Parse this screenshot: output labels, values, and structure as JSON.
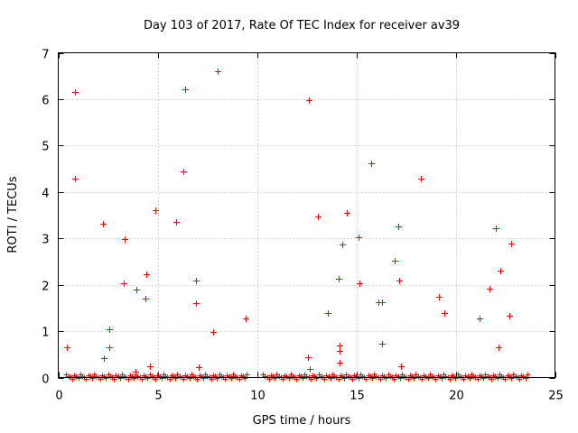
{
  "chart_data": {
    "type": "scatter",
    "title": "Day 103 of 2017, Rate Of TEC Index for receiver av39",
    "xlabel": "GPS time / hours",
    "ylabel": "ROTI / TECUs",
    "xlim": [
      0,
      25
    ],
    "ylim": [
      0,
      7
    ],
    "xticks": [
      0,
      5,
      10,
      15,
      20,
      25
    ],
    "yticks": [
      0,
      1,
      2,
      3,
      4,
      5,
      6,
      7
    ],
    "grid": true,
    "marker": "+",
    "color": "#ff0000",
    "baseline_segments": [
      {
        "x_start": 0.4,
        "x_end": 9.5,
        "y": 0.02
      },
      {
        "x_start": 10.3,
        "x_end": 23.7,
        "y": 0.02
      }
    ],
    "series": [
      {
        "name": "av39",
        "points": [
          [
            0.45,
            0.65
          ],
          [
            0.85,
            6.15
          ],
          [
            0.85,
            4.28
          ],
          [
            2.25,
            3.32
          ],
          [
            2.3,
            0.42
          ],
          [
            2.55,
            1.05
          ],
          [
            2.55,
            0.65
          ],
          [
            3.3,
            2.03
          ],
          [
            3.35,
            2.98
          ],
          [
            3.9,
            0.12
          ],
          [
            3.95,
            1.9
          ],
          [
            4.4,
            1.7
          ],
          [
            4.45,
            2.22
          ],
          [
            4.6,
            0.25
          ],
          [
            4.9,
            3.6
          ],
          [
            5.95,
            3.35
          ],
          [
            6.3,
            4.45
          ],
          [
            6.4,
            6.22
          ],
          [
            6.95,
            1.6
          ],
          [
            6.95,
            2.1
          ],
          [
            7.05,
            0.22
          ],
          [
            7.8,
            0.98
          ],
          [
            8.0,
            6.6
          ],
          [
            9.45,
            1.27
          ],
          [
            12.55,
            0.44
          ],
          [
            12.6,
            5.97
          ],
          [
            12.65,
            0.18
          ],
          [
            13.05,
            3.48
          ],
          [
            13.55,
            1.4
          ],
          [
            14.1,
            2.12
          ],
          [
            14.15,
            0.7
          ],
          [
            14.15,
            0.57
          ],
          [
            14.15,
            0.33
          ],
          [
            14.3,
            2.87
          ],
          [
            14.5,
            3.55
          ],
          [
            15.1,
            3.02
          ],
          [
            15.15,
            2.04
          ],
          [
            15.75,
            4.62
          ],
          [
            16.1,
            1.63
          ],
          [
            16.3,
            1.62
          ],
          [
            16.3,
            0.73
          ],
          [
            16.95,
            2.52
          ],
          [
            17.1,
            3.25
          ],
          [
            17.15,
            2.1
          ],
          [
            17.25,
            0.25
          ],
          [
            18.25,
            4.28
          ],
          [
            19.15,
            1.75
          ],
          [
            19.45,
            1.4
          ],
          [
            21.2,
            1.28
          ],
          [
            21.7,
            1.92
          ],
          [
            22.0,
            3.22
          ],
          [
            22.15,
            0.65
          ],
          [
            22.25,
            2.3
          ],
          [
            22.7,
            1.33
          ],
          [
            22.8,
            2.88
          ]
        ]
      }
    ]
  }
}
